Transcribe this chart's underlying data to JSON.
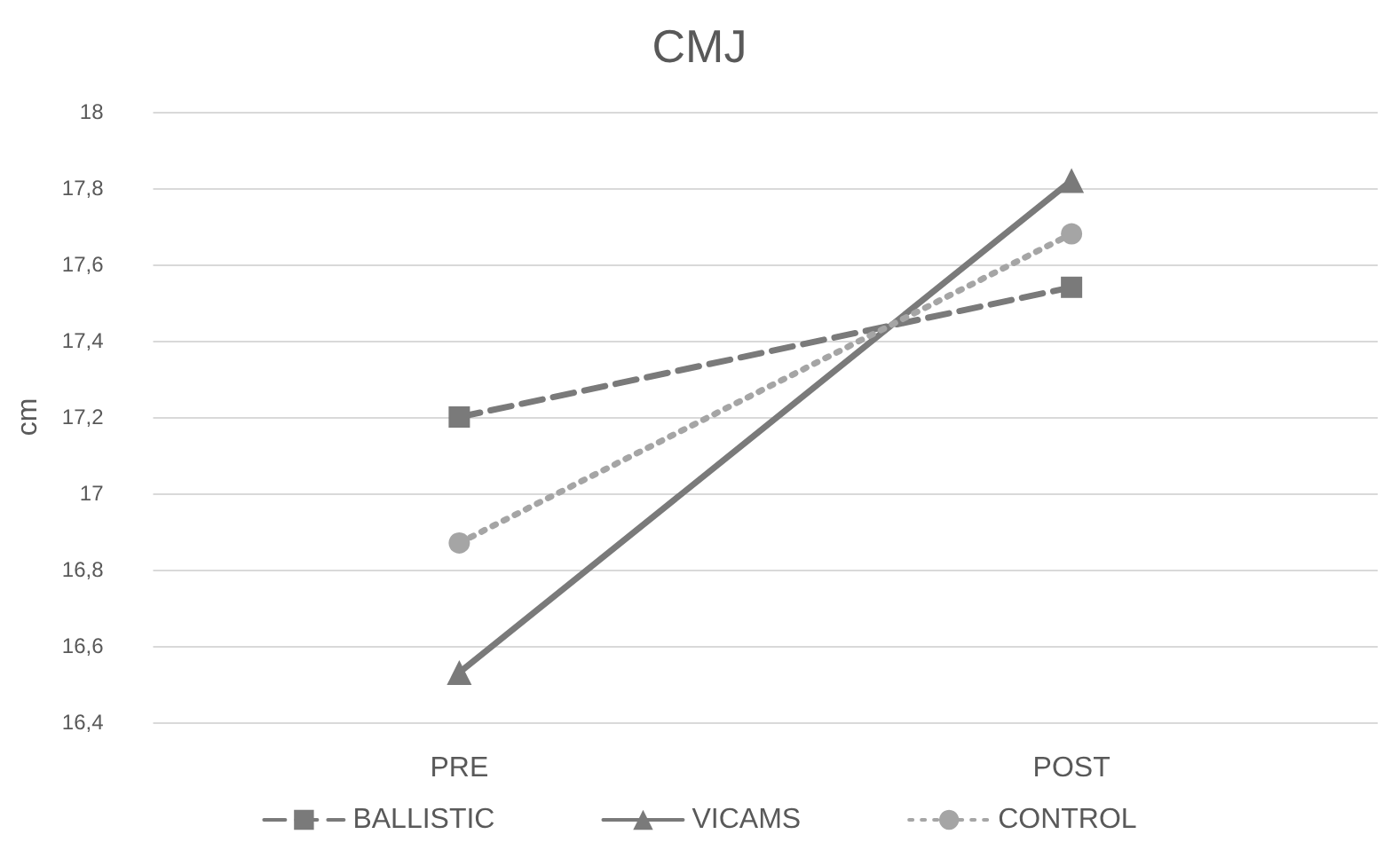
{
  "chart_data": {
    "type": "line",
    "title": "CMJ",
    "ylabel": "cm",
    "categories": [
      "PRE",
      "POST"
    ],
    "series": [
      {
        "name": "BALLISTIC",
        "color": "#7a7a7a",
        "values": [
          17.2,
          17.54
        ],
        "marker": "square",
        "line_style": "dashed"
      },
      {
        "name": "VICAMS",
        "color": "#7a7a7a",
        "values": [
          16.53,
          17.82
        ],
        "marker": "triangle",
        "line_style": "solid"
      },
      {
        "name": "CONTROL",
        "color": "#a5a5a5",
        "values": [
          16.87,
          17.68
        ],
        "marker": "circle",
        "line_style": "dotted"
      }
    ],
    "ylim": [
      16.4,
      18
    ],
    "yticks": [
      {
        "value": 16.4,
        "label": "16,4"
      },
      {
        "value": 16.6,
        "label": "16,6"
      },
      {
        "value": 16.8,
        "label": "16,8"
      },
      {
        "value": 17,
        "label": "17"
      },
      {
        "value": 17.2,
        "label": "17,2"
      },
      {
        "value": 17.4,
        "label": "17,4"
      },
      {
        "value": 17.6,
        "label": "17,6"
      },
      {
        "value": 17.8,
        "label": "17,8"
      },
      {
        "value": 18,
        "label": "18"
      }
    ],
    "grid": "y",
    "legend": "bottom"
  }
}
